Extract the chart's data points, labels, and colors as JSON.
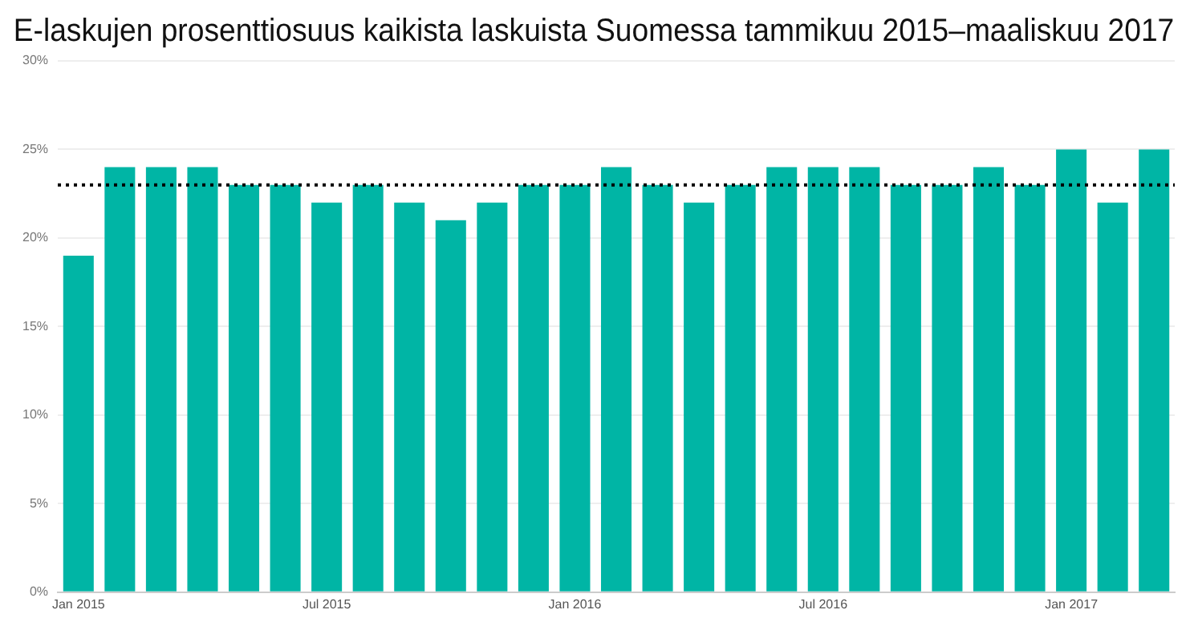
{
  "chart_data": {
    "type": "bar",
    "title": "E-laskujen prosenttiosuus kaikista laskuista Suomessa tammikuu 2015–maaliskuu 2017",
    "categories": [
      "Jan 2015",
      null,
      null,
      null,
      null,
      null,
      "Jul 2015",
      null,
      null,
      null,
      null,
      null,
      "Jan 2016",
      null,
      null,
      null,
      null,
      null,
      "Jul 2016",
      null,
      null,
      null,
      null,
      null,
      "Jan 2017",
      null,
      null
    ],
    "values": [
      19,
      24,
      24,
      24,
      23,
      23,
      22,
      23,
      22,
      21,
      22,
      23,
      23,
      24,
      23,
      22,
      23,
      24,
      24,
      24,
      23,
      23,
      24,
      23,
      25,
      22,
      25
    ],
    "color": "#00b5a5",
    "ylim": [
      0,
      30
    ],
    "yticks": [
      {
        "value": 0,
        "label": "0%"
      },
      {
        "value": 5,
        "label": "5%"
      },
      {
        "value": 10,
        "label": "10%"
      },
      {
        "value": 15,
        "label": "15%"
      },
      {
        "value": 20,
        "label": "20%"
      },
      {
        "value": 25,
        "label": "25%"
      },
      {
        "value": 30,
        "label": "30%"
      }
    ],
    "grid": "y",
    "ref_lines": [
      {
        "axis": "y",
        "value": 23,
        "color": "#000000",
        "line_style": "dotted"
      }
    ]
  }
}
